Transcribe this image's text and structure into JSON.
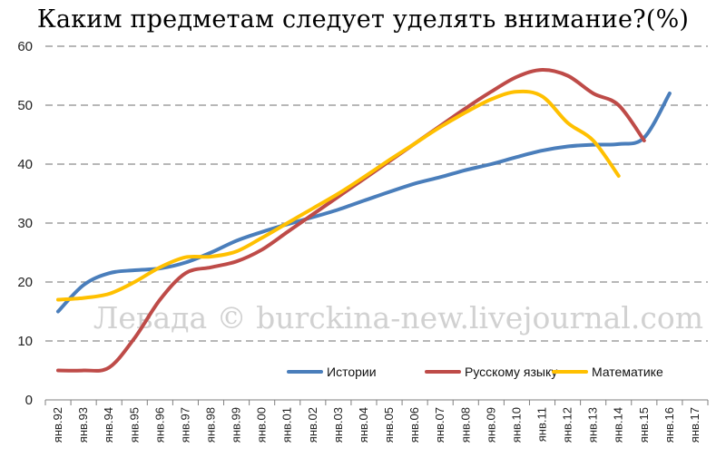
{
  "chart_data": {
    "type": "line",
    "title": "Каким предметам следует уделять внимание?(%)",
    "categories": [
      "янв.92",
      "янв.93",
      "янв.94",
      "янв.95",
      "янв.96",
      "янв.97",
      "янв.98",
      "янв.99",
      "янв.00",
      "янв.01",
      "янв.02",
      "янв.03",
      "янв.04",
      "янв.05",
      "янв.06",
      "янв.07",
      "янв.08",
      "янв.09",
      "янв.10",
      "янв.11",
      "янв.12",
      "янв.13",
      "янв.14",
      "янв.15",
      "янв.16",
      "янв.17"
    ],
    "y_ticks": [
      "0",
      "10",
      "20",
      "30",
      "40",
      "50",
      "60"
    ],
    "ylim": [
      0,
      60
    ],
    "grid": "horizontal dashed",
    "legend_position": "bottom-right",
    "series": [
      {
        "name": "Истории",
        "color": "#4a7ebb",
        "points": [
          [
            0,
            15
          ],
          [
            1,
            19.5
          ],
          [
            2,
            21.5
          ],
          [
            3,
            22
          ],
          [
            4,
            22.3
          ],
          [
            5,
            23.3
          ],
          [
            6,
            25
          ],
          [
            7,
            27
          ],
          [
            8,
            28.5
          ],
          [
            9,
            29.8
          ],
          [
            10,
            31
          ],
          [
            11,
            32.3
          ],
          [
            12,
            33.8
          ],
          [
            13,
            35.3
          ],
          [
            14,
            36.7
          ],
          [
            15,
            37.8
          ],
          [
            16,
            39
          ],
          [
            17,
            40
          ],
          [
            18,
            41.2
          ],
          [
            19,
            42.3
          ],
          [
            20,
            43
          ],
          [
            21,
            43.3
          ],
          [
            22,
            43.4
          ],
          [
            23,
            44.5
          ],
          [
            24,
            52
          ]
        ]
      },
      {
        "name": "Русскому языку",
        "color": "#be4b48",
        "points": [
          [
            0,
            5
          ],
          [
            1,
            5
          ],
          [
            2,
            5.5
          ],
          [
            3,
            10.5
          ],
          [
            4,
            17
          ],
          [
            5,
            21.5
          ],
          [
            6,
            22.5
          ],
          [
            7,
            23.5
          ],
          [
            8,
            25.5
          ],
          [
            9,
            28.5
          ],
          [
            10,
            31.5
          ],
          [
            11,
            34.5
          ],
          [
            12,
            37.5
          ],
          [
            13,
            40.5
          ],
          [
            14,
            43.5
          ],
          [
            15,
            46.5
          ],
          [
            16,
            49.5
          ],
          [
            17,
            52.3
          ],
          [
            18,
            54.8
          ],
          [
            19,
            56
          ],
          [
            20,
            55
          ],
          [
            21,
            52
          ],
          [
            22,
            50
          ],
          [
            23,
            44
          ]
        ]
      },
      {
        "name": "Математике",
        "color": "#ffc000",
        "points": [
          [
            0,
            17
          ],
          [
            1,
            17.3
          ],
          [
            2,
            18
          ],
          [
            3,
            20
          ],
          [
            4,
            22.5
          ],
          [
            5,
            24.2
          ],
          [
            6,
            24.3
          ],
          [
            7,
            25.2
          ],
          [
            8,
            27.5
          ],
          [
            9,
            30
          ],
          [
            10,
            32.5
          ],
          [
            11,
            35
          ],
          [
            12,
            37.8
          ],
          [
            13,
            40.7
          ],
          [
            14,
            43.5
          ],
          [
            15,
            46.3
          ],
          [
            16,
            48.8
          ],
          [
            17,
            51
          ],
          [
            18,
            52.3
          ],
          [
            19,
            51.5
          ],
          [
            20,
            47
          ],
          [
            21,
            44
          ],
          [
            22,
            38
          ]
        ]
      }
    ]
  },
  "watermark": "Левада © burckina-new.livejournal.com"
}
